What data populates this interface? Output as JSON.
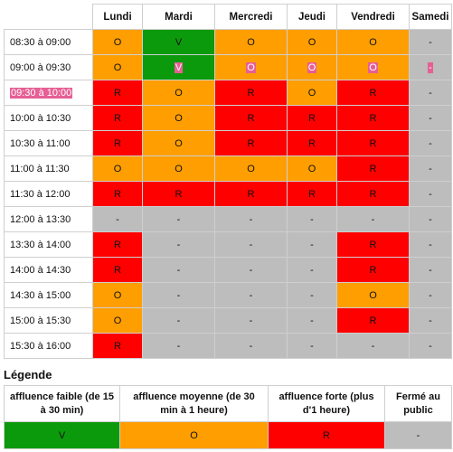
{
  "days": [
    "Lundi",
    "Mardi",
    "Mercredi",
    "Jeudi",
    "Vendredi",
    "Samedi"
  ],
  "rows": [
    {
      "slot": "08:30 à 09:00",
      "cells": [
        "O",
        "V",
        "O",
        "O",
        "O",
        "-"
      ],
      "classes": [
        "O",
        "V",
        "O",
        "O",
        "O",
        "X"
      ],
      "highlight": false
    },
    {
      "slot": "09:00 à 09:30",
      "cells": [
        "O",
        "V",
        "O",
        "O",
        "O",
        "-"
      ],
      "classes": [
        "O",
        "V",
        "O",
        "O",
        "O",
        "X"
      ],
      "highlight": false,
      "cell_highlight": [
        false,
        true,
        true,
        true,
        true,
        true
      ]
    },
    {
      "slot": "09:30 à 10:00",
      "cells": [
        "R",
        "O",
        "R",
        "O",
        "R",
        "-"
      ],
      "classes": [
        "R",
        "O",
        "R",
        "O",
        "R",
        "X"
      ],
      "highlight": true
    },
    {
      "slot": "10:00 à 10:30",
      "cells": [
        "R",
        "O",
        "R",
        "R",
        "R",
        "-"
      ],
      "classes": [
        "R",
        "O",
        "R",
        "R",
        "R",
        "X"
      ],
      "highlight": false
    },
    {
      "slot": "10:30 à 11:00",
      "cells": [
        "R",
        "O",
        "R",
        "R",
        "R",
        "-"
      ],
      "classes": [
        "R",
        "O",
        "R",
        "R",
        "R",
        "X"
      ],
      "highlight": false
    },
    {
      "slot": "11:00 à 11:30",
      "cells": [
        "O",
        "O",
        "O",
        "O",
        "R",
        "-"
      ],
      "classes": [
        "O",
        "O",
        "O",
        "O",
        "R",
        "X"
      ],
      "highlight": false
    },
    {
      "slot": "11:30 à 12:00",
      "cells": [
        "R",
        "R",
        "R",
        "R",
        "R",
        "-"
      ],
      "classes": [
        "R",
        "R",
        "R",
        "R",
        "R",
        "X"
      ],
      "highlight": false
    },
    {
      "slot": "12:00 à 13:30",
      "cells": [
        "-",
        "-",
        "-",
        "-",
        "-",
        "-"
      ],
      "classes": [
        "X",
        "X",
        "X",
        "X",
        "X",
        "X"
      ],
      "highlight": false
    },
    {
      "slot": "13:30 à 14:00",
      "cells": [
        "R",
        "-",
        "-",
        "-",
        "R",
        "-"
      ],
      "classes": [
        "R",
        "X",
        "X",
        "X",
        "R",
        "X"
      ],
      "highlight": false
    },
    {
      "slot": "14:00 à 14:30",
      "cells": [
        "R",
        "-",
        "-",
        "-",
        "R",
        "-"
      ],
      "classes": [
        "R",
        "X",
        "X",
        "X",
        "R",
        "X"
      ],
      "highlight": false
    },
    {
      "slot": "14:30 à 15:00",
      "cells": [
        "O",
        "-",
        "-",
        "-",
        "O",
        "-"
      ],
      "classes": [
        "O",
        "X",
        "X",
        "X",
        "O",
        "X"
      ],
      "highlight": false
    },
    {
      "slot": "15:00 à 15:30",
      "cells": [
        "O",
        "-",
        "-",
        "-",
        "R",
        "-"
      ],
      "classes": [
        "O",
        "X",
        "X",
        "X",
        "R",
        "X"
      ],
      "highlight": false
    },
    {
      "slot": "15:30 à 16:00",
      "cells": [
        "R",
        "-",
        "-",
        "-",
        "-",
        "-"
      ],
      "classes": [
        "R",
        "X",
        "X",
        "X",
        "X",
        "X"
      ],
      "highlight": false
    }
  ],
  "legend": {
    "title": "Légende",
    "headers": [
      "affluence faible (de 15 à 30 min)",
      "affluence moyenne (de 30 min à 1 heure)",
      "affluence forte (plus d'1 heure)",
      "Fermé au public"
    ],
    "codes": [
      "V",
      "O",
      "R",
      "-"
    ],
    "classes": [
      "V",
      "O",
      "R",
      "X"
    ]
  },
  "colors": {
    "V": "#0b9a0b",
    "O": "#ff9e00",
    "R": "#ff0000",
    "closed": "#bdbdbd",
    "highlight": "#e65f95"
  }
}
